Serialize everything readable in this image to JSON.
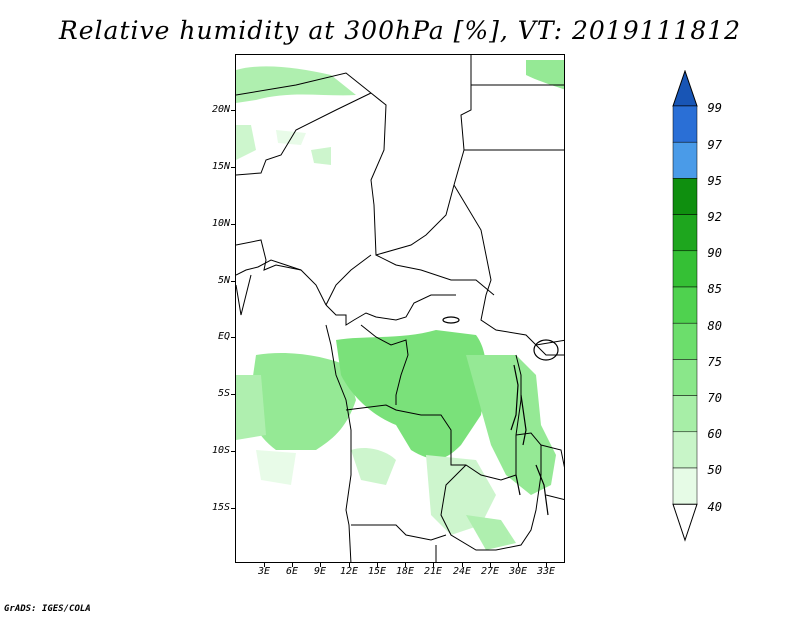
{
  "title": "Relative humidity at 300hPa [%], VT: 2019111812",
  "map": {
    "lat_labels": [
      "20N",
      "15N",
      "10N",
      "5N",
      "EQ",
      "5S",
      "10S",
      "15S"
    ],
    "lat_values": [
      20,
      15,
      10,
      5,
      0,
      -5,
      -10,
      -15
    ],
    "lon_labels": [
      "3E",
      "6E",
      "9E",
      "12E",
      "15E",
      "18E",
      "21E",
      "24E",
      "27E",
      "30E",
      "33E"
    ],
    "lon_values": [
      3,
      6,
      9,
      12,
      15,
      18,
      21,
      24,
      27,
      30,
      33
    ],
    "lon_range": [
      0,
      35
    ],
    "lat_range": [
      -20,
      25
    ]
  },
  "colorbar": {
    "levels": [
      "40",
      "50",
      "60",
      "70",
      "75",
      "80",
      "85",
      "90",
      "92",
      "95",
      "97",
      "99"
    ],
    "colors": [
      "#ffffff",
      "#e6fbe6",
      "#c8f5c8",
      "#a7eea7",
      "#8ae78a",
      "#6cde6c",
      "#4fd24f",
      "#35c035",
      "#1ea61e",
      "#0f8f0f",
      "#4a9be8",
      "#2a6fd6",
      "#1855b5"
    ]
  },
  "credit": "GrADS: IGES/COLA"
}
